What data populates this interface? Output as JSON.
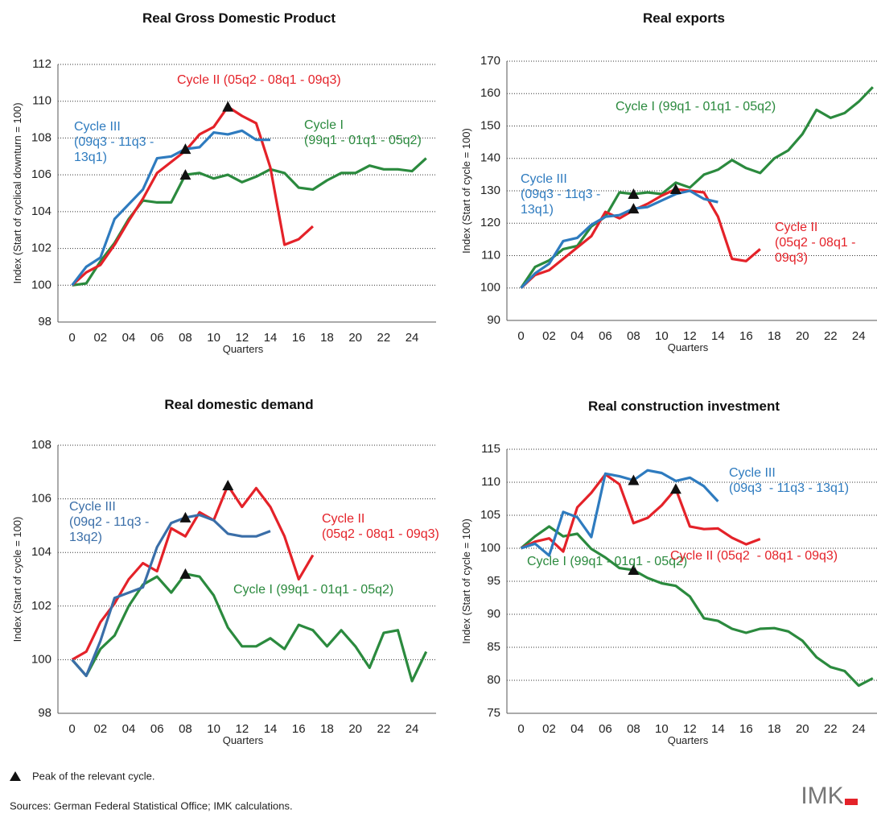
{
  "chart_data": [
    {
      "type": "line",
      "title": "Real Gross Domestic Product",
      "xlabel": "Quarters",
      "ylabel": "Index (Start of cyclical downturn = 100)",
      "x": [
        0,
        1,
        2,
        3,
        4,
        5,
        6,
        7,
        8,
        9,
        10,
        11,
        12,
        13,
        14,
        15,
        16,
        17,
        18,
        19,
        20,
        21,
        22,
        23,
        24,
        25
      ],
      "xlim": [
        -1,
        25.7
      ],
      "xticks": [
        0,
        {
          "value": 2,
          "label": "02"
        },
        {
          "value": 4,
          "label": "04"
        },
        {
          "value": 6,
          "label": "06"
        },
        {
          "value": 8,
          "label": "08"
        },
        10,
        12,
        14,
        16,
        18,
        20,
        22,
        24
      ],
      "ylim": [
        98,
        112
      ],
      "yticks": [
        98,
        100,
        102,
        104,
        106,
        108,
        110,
        112
      ],
      "grid": true,
      "series": [
        {
          "name": "Cycle I\n(99q1 - 01q1 - 05q2)",
          "color": "#2b8a3e",
          "peak": 8,
          "values": [
            100,
            100.1,
            101.3,
            102.3,
            103.6,
            104.6,
            104.5,
            104.5,
            106,
            106.1,
            105.8,
            106,
            105.6,
            105.9,
            106.3,
            106.1,
            105.3,
            105.2,
            105.7,
            106.1,
            106.1,
            106.5,
            106.3,
            106.3,
            106.2,
            106.9
          ]
        },
        {
          "name": "Cycle II (05q2 - 08q1 - 09q3)",
          "color": "#e42229",
          "peak": 11,
          "values": [
            100,
            100.7,
            101.1,
            102.2,
            103.5,
            104.7,
            106.1,
            106.7,
            107.3,
            108.2,
            108.6,
            109.7,
            109.2,
            108.8,
            106.4,
            102.2,
            102.5,
            103.2,
            null,
            null,
            null,
            null,
            null,
            null,
            null,
            null
          ]
        },
        {
          "name": "Cycle III\n(09q3 - 11q3 -\n13q1)",
          "color": "#2e7bbf",
          "peak": 8,
          "values": [
            100,
            101,
            101.5,
            103.6,
            104.4,
            105.2,
            106.9,
            107,
            107.4,
            107.5,
            108.3,
            108.2,
            108.4,
            107.9,
            107.9,
            null,
            null,
            null,
            null,
            null,
            null,
            null,
            null,
            null,
            null,
            null
          ]
        }
      ]
    },
    {
      "type": "line",
      "title": "Real exports",
      "xlabel": "Quarters",
      "ylabel": "Index (Start of cycle = 100)",
      "x": [
        0,
        1,
        2,
        3,
        4,
        5,
        6,
        7,
        8,
        9,
        10,
        11,
        12,
        13,
        14,
        15,
        16,
        17,
        18,
        19,
        20,
        21,
        22,
        23,
        24,
        25
      ],
      "xlim": [
        -1,
        25.3
      ],
      "xticks": [
        0,
        {
          "value": 2,
          "label": "02"
        },
        {
          "value": 4,
          "label": "04"
        },
        {
          "value": 6,
          "label": "06"
        },
        {
          "value": 8,
          "label": "08"
        },
        10,
        12,
        14,
        16,
        18,
        20,
        22,
        24
      ],
      "ylim": [
        90,
        170
      ],
      "yticks": [
        90,
        100,
        110,
        120,
        130,
        140,
        150,
        160,
        170
      ],
      "grid": true,
      "series": [
        {
          "name": "Cycle I (99q1 - 01q1 - 05q2)",
          "color": "#2b8a3e",
          "peak": 8,
          "values": [
            100,
            106.5,
            108.5,
            112,
            113,
            119,
            122,
            129.5,
            129,
            129.5,
            129,
            132.5,
            131,
            135,
            136.5,
            139.5,
            137,
            135.5,
            140,
            142.5,
            147.5,
            155,
            152.5,
            154,
            157.5,
            162
          ]
        },
        {
          "name": "Cycle II\n(05q2 - 08q1 -\n09q3)",
          "color": "#e42229",
          "peak": 11,
          "values": [
            100,
            104,
            105.5,
            109,
            112.5,
            116,
            123.5,
            121.5,
            124,
            126,
            128.5,
            130.5,
            130,
            129.5,
            122,
            109,
            108.3,
            112,
            null,
            null,
            null,
            null,
            null,
            null,
            null,
            null
          ]
        },
        {
          "name": "Cycle III\n(09q3 - 11q3 -\n13q1)",
          "color": "#2e7bbf",
          "peak": 8,
          "values": [
            100,
            104.5,
            107.5,
            114.5,
            115.5,
            119.5,
            122,
            122.5,
            124.5,
            125,
            127,
            129,
            130,
            127.5,
            126.5,
            null,
            null,
            null,
            null,
            null,
            null,
            null,
            null,
            null,
            null,
            null
          ]
        }
      ]
    },
    {
      "type": "line",
      "title": "Real domestic demand",
      "xlabel": "Quarters",
      "ylabel": "Index (Start of cycle = 100)",
      "x": [
        0,
        1,
        2,
        3,
        4,
        5,
        6,
        7,
        8,
        9,
        10,
        11,
        12,
        13,
        14,
        15,
        16,
        17,
        18,
        19,
        20,
        21,
        22,
        23,
        24,
        25
      ],
      "xlim": [
        -1,
        25.7
      ],
      "xticks": [
        0,
        {
          "value": 2,
          "label": "02"
        },
        {
          "value": 4,
          "label": "04"
        },
        {
          "value": 6,
          "label": "06"
        },
        {
          "value": 8,
          "label": "08"
        },
        10,
        12,
        14,
        16,
        18,
        20,
        22,
        24
      ],
      "ylim": [
        98,
        108
      ],
      "yticks": [
        98,
        100,
        102,
        104,
        106,
        108
      ],
      "grid": true,
      "series": [
        {
          "name": "Cycle I (99q1 - 01q1 - 05q2)",
          "color": "#2b8a3e",
          "peak": 8,
          "values": [
            100,
            99.4,
            100.4,
            100.9,
            102,
            102.8,
            103.1,
            102.5,
            103.2,
            103.1,
            102.4,
            101.2,
            100.5,
            100.5,
            100.8,
            100.4,
            101.3,
            101.1,
            100.5,
            101.1,
            100.5,
            99.7,
            101,
            101.1,
            99.2,
            100.3
          ]
        },
        {
          "name": "Cycle II\n(05q2 - 08q1 - 09q3)",
          "color": "#e42229",
          "peak": 11,
          "values": [
            100,
            100.3,
            101.4,
            102.1,
            103,
            103.6,
            103.3,
            104.9,
            104.6,
            105.5,
            105.2,
            106.5,
            105.7,
            106.4,
            105.7,
            104.6,
            103,
            103.9,
            null,
            null,
            null,
            null,
            null,
            null,
            null,
            null
          ]
        },
        {
          "name": "Cycle III\n(09q2 - 11q3 -\n13q2)",
          "color": "#3a6ea8",
          "peak": 8,
          "values": [
            100,
            99.4,
            100.7,
            102.3,
            102.5,
            102.7,
            104.2,
            105.1,
            105.3,
            105.4,
            105.2,
            104.7,
            104.6,
            104.6,
            104.8,
            null,
            null,
            null,
            null,
            null,
            null,
            null,
            null,
            null,
            null,
            null
          ]
        }
      ]
    },
    {
      "type": "line",
      "title": "Real construction investment",
      "xlabel": "Quarters",
      "ylabel": "Index (Start of cycle = 100)",
      "x": [
        0,
        1,
        2,
        3,
        4,
        5,
        6,
        7,
        8,
        9,
        10,
        11,
        12,
        13,
        14,
        15,
        16,
        17,
        18,
        19,
        20,
        21,
        22,
        23,
        24,
        25
      ],
      "xlim": [
        -1,
        25.3
      ],
      "xticks": [
        0,
        {
          "value": 2,
          "label": "02"
        },
        {
          "value": 4,
          "label": "04"
        },
        {
          "value": 6,
          "label": "06"
        },
        {
          "value": 8,
          "label": "08"
        },
        10,
        12,
        14,
        16,
        18,
        20,
        22,
        24
      ],
      "ylim": [
        75,
        115
      ],
      "yticks": [
        75,
        80,
        85,
        90,
        95,
        100,
        105,
        110,
        115
      ],
      "grid": true,
      "series": [
        {
          "name": "Cycle I (99q1 - 01q1 - 05q2)",
          "color": "#2b8a3e",
          "peak": 8,
          "values": [
            100,
            101.8,
            103.3,
            101.8,
            102.2,
            99.9,
            98.6,
            97,
            96.7,
            95.5,
            94.7,
            94.3,
            92.7,
            89.4,
            89,
            87.8,
            87.2,
            87.8,
            87.9,
            87.4,
            86,
            83.5,
            82,
            81.4,
            79.2,
            80.3
          ]
        },
        {
          "name": "Cycle II (05q2  - 08q1 - 09q3)",
          "color": "#e42229",
          "peak": 11,
          "values": [
            100,
            101,
            101.5,
            99.5,
            106.2,
            108.4,
            111.2,
            109.7,
            103.8,
            104.6,
            106.5,
            109,
            103.3,
            102.9,
            103,
            101.6,
            100.6,
            101.4,
            null,
            null,
            null,
            null,
            null,
            null,
            null,
            null
          ]
        },
        {
          "name": "Cycle III\n(09q3  - 11q3 - 13q1)",
          "color": "#2e7bbf",
          "peak": 8,
          "values": [
            100,
            100.7,
            98.9,
            105.5,
            104.7,
            101.7,
            111.3,
            110.9,
            110.3,
            111.8,
            111.4,
            110.2,
            110.7,
            109.4,
            107.1,
            null,
            null,
            null,
            null,
            null,
            null,
            null,
            null,
            null,
            null,
            null
          ]
        }
      ]
    }
  ],
  "note": "Peak of the relevant cycle.",
  "source": "Sources: German Federal Statistical Office; IMK calculations.",
  "logo": "IMK"
}
